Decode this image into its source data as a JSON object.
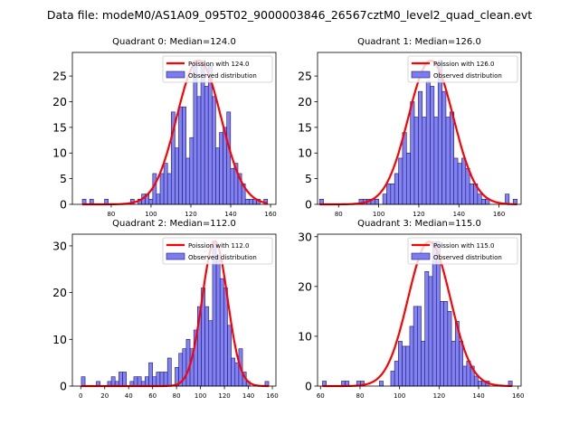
{
  "figure_title": "Data file: modeM0/AS1A09_095T02_9000003846_26567cztM0_level2_quad_clean.evt",
  "colors": {
    "bar_fill": "#7b7bf2",
    "bar_edge": "#1a1a6e",
    "curve": "#ff0000"
  },
  "chart_data": [
    {
      "type": "bar",
      "title": "Quadrant 0: Median=124.0",
      "legend": {
        "curve": "Poission with 124.0",
        "bars": "Observed distribution",
        "placement": "top-right"
      },
      "xlim": [
        60.5,
        162.7
      ],
      "ylim": [
        0,
        29.6
      ],
      "xticks": [
        80,
        100,
        120,
        140,
        160
      ],
      "yticks": [
        0,
        5,
        10,
        15,
        20,
        25
      ],
      "bin_start": 65.5,
      "bin_width": 1.86,
      "counts": [
        1,
        0,
        1,
        0,
        0,
        0,
        1,
        0,
        0,
        0,
        0,
        0,
        0,
        1,
        0,
        1,
        2,
        2,
        1,
        6,
        2,
        6,
        8,
        6,
        18,
        11,
        19,
        19,
        9,
        13,
        28,
        21,
        28,
        23,
        27,
        21,
        11,
        14,
        15,
        18,
        7,
        8,
        6,
        4,
        1,
        1,
        1,
        1,
        0,
        1
      ],
      "poisson_mean": 124.0,
      "curve_peak": 28
    },
    {
      "type": "bar",
      "title": "Quadrant 1: Median=126.0",
      "legend": {
        "curve": "Poission with 126.0",
        "bars": "Observed distribution",
        "placement": "top-right"
      },
      "xlim": [
        69.5,
        171
      ],
      "ylim": [
        0,
        29.6
      ],
      "xticks": [
        80,
        100,
        120,
        140,
        160
      ],
      "yticks": [
        0,
        5,
        10,
        15,
        20,
        25
      ],
      "bin_start": 70.5,
      "bin_width": 1.97,
      "counts": [
        1,
        0,
        0,
        0,
        0,
        0,
        0,
        0,
        0,
        0,
        1,
        1,
        1,
        1,
        1,
        0,
        2,
        4,
        4,
        6,
        9,
        14,
        10,
        20,
        17,
        22,
        17,
        24,
        23,
        17,
        28,
        22,
        17,
        18,
        9,
        8,
        9,
        7,
        4,
        4,
        2,
        1,
        1,
        0,
        0,
        0,
        0,
        2,
        0,
        1
      ],
      "poisson_mean": 126.0,
      "curve_peak": 28
    },
    {
      "type": "bar",
      "title": "Quadrant 2: Median=112.0",
      "legend": {
        "curve": "Poission with 112.0",
        "bars": "Observed distribution",
        "placement": "top-right"
      },
      "xlim": [
        -7,
        163
      ],
      "ylim": [
        0,
        32.5
      ],
      "xticks": [
        0,
        20,
        40,
        60,
        80,
        100,
        120,
        140,
        160
      ],
      "yticks": [
        0,
        10,
        20,
        30
      ],
      "bin_start": 0.5,
      "bin_width": 3.13,
      "counts": [
        2,
        0,
        0,
        0,
        1,
        0,
        0,
        1,
        2,
        1,
        3,
        3,
        0,
        1,
        2,
        2,
        1,
        2,
        5,
        2,
        3,
        3,
        3,
        6,
        0,
        4,
        7,
        8,
        10,
        8,
        12,
        17,
        21,
        17,
        14,
        31,
        28,
        23,
        21,
        13,
        6,
        5,
        8,
        3,
        1,
        0,
        0,
        0,
        0,
        1
      ],
      "poisson_mean": 112.0,
      "curve_peak": 31
    },
    {
      "type": "bar",
      "title": "Quadrant 3: Median=115.0",
      "legend": {
        "curve": "Poission with 115.0",
        "bars": "Observed distribution",
        "placement": "top-right"
      },
      "xlim": [
        58.5,
        161.5
      ],
      "ylim": [
        0,
        30.5
      ],
      "xticks": [
        60,
        80,
        100,
        120,
        140,
        160
      ],
      "yticks": [
        0,
        10,
        20,
        30
      ],
      "bin_start": 61,
      "bin_width": 1.92,
      "counts": [
        1,
        0,
        0,
        0,
        0,
        1,
        1,
        0,
        0,
        1,
        1,
        0,
        0,
        0,
        0,
        1,
        0,
        0,
        3,
        5,
        9,
        8,
        8,
        12,
        16,
        16,
        9,
        23,
        22,
        29,
        29,
        17,
        17,
        15,
        9,
        13,
        9,
        4,
        5,
        4,
        2,
        1,
        1,
        1,
        0,
        0,
        0,
        0,
        0,
        1
      ],
      "poisson_mean": 115.0,
      "curve_peak": 29
    }
  ]
}
